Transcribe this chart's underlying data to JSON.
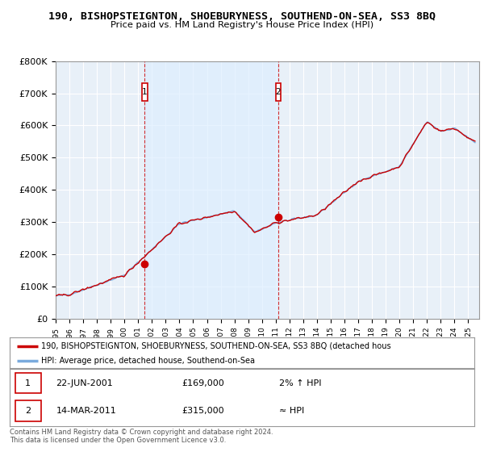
{
  "title": "190, BISHOPSTEIGNTON, SHOEBURYNESS, SOUTHEND-ON-SEA, SS3 8BQ",
  "subtitle": "Price paid vs. HM Land Registry's House Price Index (HPI)",
  "ylim": [
    0,
    800000
  ],
  "yticks": [
    0,
    100000,
    200000,
    300000,
    400000,
    500000,
    600000,
    700000,
    800000
  ],
  "ytick_labels": [
    "£0",
    "£100K",
    "£200K",
    "£300K",
    "£400K",
    "£500K",
    "£600K",
    "£700K",
    "£800K"
  ],
  "transaction1_year": 2001.47,
  "transaction1_price": 169000,
  "transaction1_label": "1",
  "transaction2_year": 2011.19,
  "transaction2_price": 315000,
  "transaction2_label": "2",
  "line_color_property": "#cc0000",
  "line_color_hpi": "#7aaadd",
  "fill_color": "#ddeeff",
  "marker_box_color": "#cc0000",
  "plot_bg_color": "#e8f0f8",
  "grid_color": "#ffffff",
  "legend_label_property": "190, BISHOPSTEIGNTON, SHOEBURYNESS, SOUTHEND-ON-SEA, SS3 8BQ (detached hous",
  "legend_label_hpi": "HPI: Average price, detached house, Southend-on-Sea",
  "annotation1_date": "22-JUN-2001",
  "annotation1_price": "£169,000",
  "annotation1_pct": "2% ↑ HPI",
  "annotation2_date": "14-MAR-2011",
  "annotation2_price": "£315,000",
  "annotation2_pct": "≈ HPI",
  "footer": "Contains HM Land Registry data © Crown copyright and database right 2024.\nThis data is licensed under the Open Government Licence v3.0."
}
